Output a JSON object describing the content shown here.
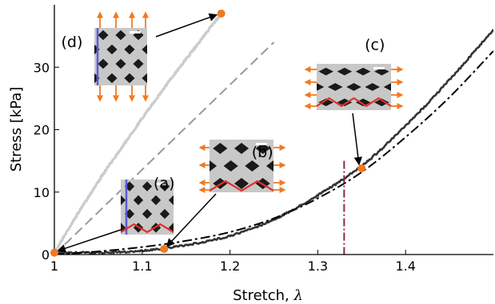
{
  "chart_data": {
    "type": "line",
    "xlabel": "Stretch,",
    "xlabel_symbol": "λ",
    "ylabel": "Stress [kPa]",
    "xlim": [
      1.0,
      1.5
    ],
    "ylim": [
      0,
      40
    ],
    "x_ticks": [
      1.0,
      1.1,
      1.2,
      1.3,
      1.4
    ],
    "x_tick_labels": [
      "1",
      "1.1",
      "1.2",
      "1.3",
      "1.4"
    ],
    "y_ticks": [
      0,
      10,
      20,
      30
    ],
    "y_tick_labels": [
      "0",
      "10",
      "20",
      "30"
    ],
    "grid": false,
    "legend": "none",
    "series": [
      {
        "style": "noisy-solid",
        "color": "#cccccc",
        "x": [
          1.0,
          1.02,
          1.04,
          1.06,
          1.08,
          1.1,
          1.12,
          1.14,
          1.16,
          1.18,
          1.19
        ],
        "y": [
          0.3,
          5.0,
          9.5,
          13.8,
          17.8,
          21.8,
          25.7,
          29.5,
          33.1,
          36.8,
          38.5
        ]
      },
      {
        "style": "dashed",
        "color": "#999999",
        "x": [
          1.0,
          1.05,
          1.1,
          1.15,
          1.2,
          1.25
        ],
        "y": [
          0.0,
          6.8,
          13.6,
          20.4,
          27.2,
          34.0
        ]
      },
      {
        "style": "noisy-solid",
        "color": "#333333",
        "x": [
          1.0,
          1.05,
          1.1,
          1.15,
          1.2,
          1.25,
          1.3,
          1.35,
          1.4,
          1.45,
          1.5
        ],
        "y": [
          0.3,
          0.3,
          0.6,
          1.5,
          3.0,
          5.6,
          9.5,
          14.2,
          20.6,
          28.0,
          36.0
        ]
      },
      {
        "style": "dashdot",
        "color": "#000000",
        "x": [
          1.0,
          1.05,
          1.1,
          1.15,
          1.2,
          1.25,
          1.3,
          1.35,
          1.4,
          1.45,
          1.5
        ],
        "y": [
          0.0,
          0.5,
          1.2,
          2.2,
          3.6,
          5.8,
          9.0,
          13.2,
          18.8,
          25.2,
          32.6
        ]
      }
    ],
    "vertical_line": {
      "x": 1.33,
      "color": "#8b2a3a",
      "style": "dashdot",
      "y_top": 15
    },
    "markers": [
      {
        "label": "(a)",
        "x": 1.0,
        "y": 0.3,
        "color": "#f07a22"
      },
      {
        "label": "(b)",
        "x": 1.125,
        "y": 0.9,
        "color": "#f07a22"
      },
      {
        "label": "(c)",
        "x": 1.35,
        "y": 13.8,
        "color": "#f07a22"
      },
      {
        "label": "(d)",
        "x": 1.19,
        "y": 38.6,
        "color": "#f07a22"
      }
    ],
    "annotations": [
      {
        "text": "(a)",
        "anchor_x": 1.125,
        "anchor_y": 10.6
      },
      {
        "text": "(b)",
        "anchor_x": 1.237,
        "anchor_y": 15.6
      },
      {
        "text": "(c)",
        "anchor_x": 1.365,
        "anchor_y": 32.8
      },
      {
        "text": "(d)",
        "anchor_x": 1.02,
        "anchor_y": 33.2
      }
    ],
    "inset_images": [
      {
        "label": "(a)",
        "description_name": "lattice-inset-a"
      },
      {
        "label": "(b)",
        "description_name": "lattice-inset-b"
      },
      {
        "label": "(c)",
        "description_name": "lattice-inset-c"
      },
      {
        "label": "(d)",
        "description_name": "lattice-inset-d"
      }
    ]
  },
  "colors": {
    "marker": "#f07a22",
    "arrow_orange": "#f07a22",
    "hinge_red": "#e0302a",
    "hinge_blue": "#5a5ad6",
    "lattice_bg": "#1a1a1a",
    "lattice_strut": "#c8c8c8"
  }
}
